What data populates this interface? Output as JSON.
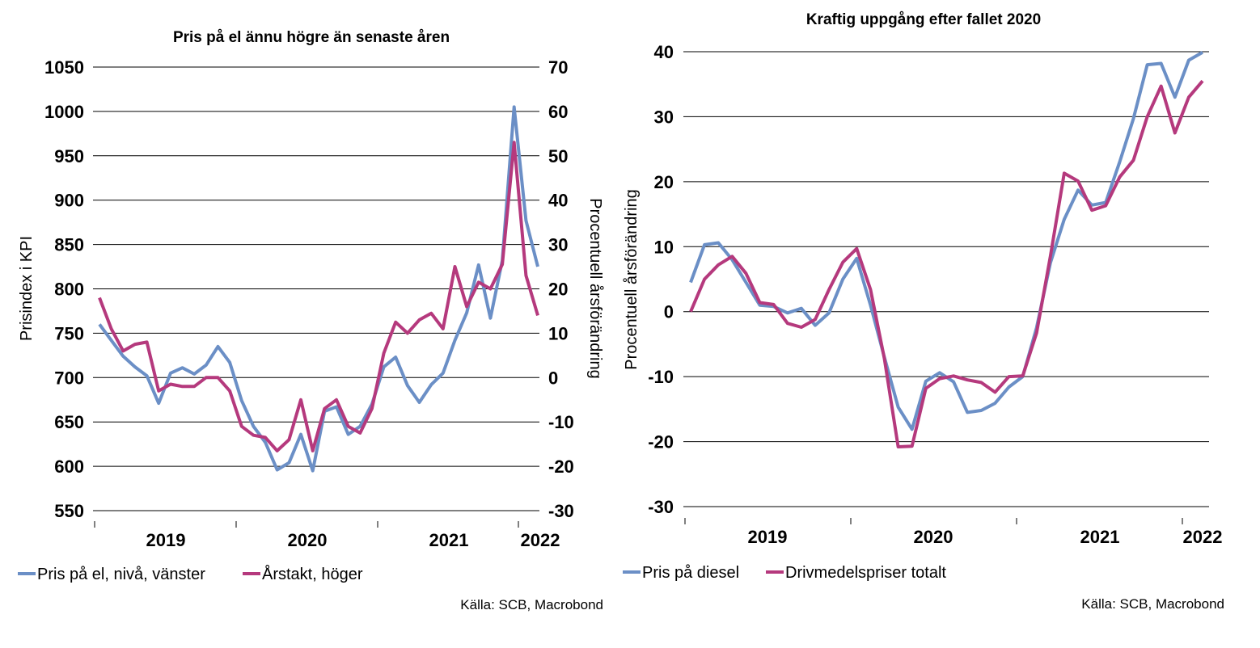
{
  "colors": {
    "blue": "#6b8fc6",
    "magenta": "#b5397d"
  },
  "chart_data": [
    {
      "type": "line",
      "title": "Pris på el ännu högre än senaste åren",
      "ylabel": "Prisindex i KPI",
      "ylabel_right": "Procentuell årsförändring",
      "ylim": [
        550,
        1050
      ],
      "ylim_right": [
        -30,
        70
      ],
      "yticks": [
        "1050",
        "1000",
        "950",
        "900",
        "850",
        "800",
        "750",
        "700",
        "650",
        "600",
        "550"
      ],
      "yticks_right": [
        "70",
        "60",
        "50",
        "40",
        "30",
        "20",
        "10",
        "0",
        "-10",
        "-20",
        "-30"
      ],
      "x_labels": [
        "2019",
        "2020",
        "2021",
        "2022"
      ],
      "series": [
        {
          "name": "Pris på el, nivå, vänster",
          "axis": "left",
          "color": "#6b8fc6",
          "values": [
            760,
            742,
            724,
            712,
            702,
            671,
            705,
            711,
            704,
            714,
            735,
            717,
            674,
            645,
            627,
            596,
            604,
            636,
            595,
            662,
            667,
            636,
            645,
            670,
            712,
            723,
            691,
            672,
            692,
            705,
            742,
            773,
            827,
            767,
            832,
            1005,
            877,
            825
          ]
        },
        {
          "name": "Årstakt, höger",
          "axis": "right",
          "color": "#b5397d",
          "values": [
            18,
            11,
            6,
            7.5,
            8,
            -3,
            -1.5,
            -2,
            -2,
            0,
            0,
            -3,
            -11,
            -13,
            -13.5,
            -16.5,
            -14,
            -5,
            -16.5,
            -7,
            -5,
            -11,
            -12.5,
            -7,
            5.5,
            12.5,
            10,
            13,
            14.5,
            11,
            25,
            16,
            21.5,
            20,
            25.5,
            53,
            23,
            14
          ]
        }
      ],
      "source": "Källa: SCB, Macrobond"
    },
    {
      "type": "line",
      "title": "Kraftig uppgång efter fallet 2020",
      "ylabel": "Procentuell årsförändring",
      "ylim": [
        -30,
        40
      ],
      "yticks": [
        "40",
        "30",
        "20",
        "10",
        "0",
        "-10",
        "-20",
        "-30"
      ],
      "x_labels": [
        "2019",
        "2020",
        "2021",
        "2022"
      ],
      "series": [
        {
          "name": "Pris på diesel",
          "color": "#6b8fc6",
          "values": [
            4.5,
            10.3,
            10.6,
            8.0,
            4.5,
            1.0,
            0.8,
            -0.2,
            0.5,
            -2.1,
            -0.2,
            5.0,
            8.2,
            1.0,
            -7.0,
            -14.7,
            -18.1,
            -10.7,
            -9.4,
            -10.8,
            -15.5,
            -15.2,
            -14.1,
            -11.6,
            -10.0,
            -2.5,
            7.5,
            14.2,
            18.7,
            16.4,
            16.8,
            23.0,
            29.7,
            38.0,
            38.2,
            33.0,
            38.7,
            39.9
          ]
        },
        {
          "name": "Drivmedelspriser totalt",
          "color": "#b5397d",
          "values": [
            0.0,
            5.0,
            7.2,
            8.5,
            5.9,
            1.4,
            1.1,
            -1.8,
            -2.4,
            -1.2,
            3.4,
            7.6,
            9.7,
            3.4,
            -7.2,
            -20.8,
            -20.7,
            -11.8,
            -10.3,
            -9.9,
            -10.5,
            -10.9,
            -12.4,
            -10.0,
            -9.9,
            -3.3,
            8.5,
            21.3,
            20.1,
            15.6,
            16.3,
            20.7,
            23.3,
            30.0,
            34.7,
            27.5,
            33.0,
            35.5
          ]
        }
      ],
      "source": "Källa: SCB, Macrobond"
    }
  ]
}
